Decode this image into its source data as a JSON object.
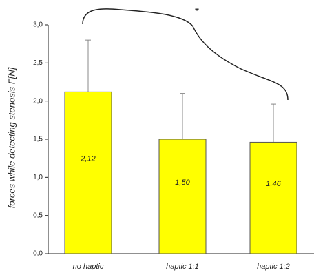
{
  "chart_data": {
    "type": "bar",
    "y_label": "forces while detecting stenosis F[N]",
    "annotation": "*",
    "categories": [
      "no haptic",
      "haptic 1:1",
      "haptic 1:2"
    ],
    "values": [
      2.12,
      1.5,
      1.46
    ],
    "value_labels": [
      "2,12",
      "1,50",
      "1,46"
    ],
    "errors": [
      0.68,
      0.6,
      0.5
    ],
    "color": "#ffff00",
    "ylim": [
      0,
      3.0
    ],
    "yticks": [
      {
        "value": 0,
        "label": "0,0"
      },
      {
        "value": 0.5,
        "label": "0,5"
      },
      {
        "value": 1.0,
        "label": "1,0"
      },
      {
        "value": 1.5,
        "label": "1,5"
      },
      {
        "value": 2.0,
        "label": "2,0"
      },
      {
        "value": 2.5,
        "label": "2,5"
      },
      {
        "value": 3.0,
        "label": "3,0"
      }
    ]
  }
}
